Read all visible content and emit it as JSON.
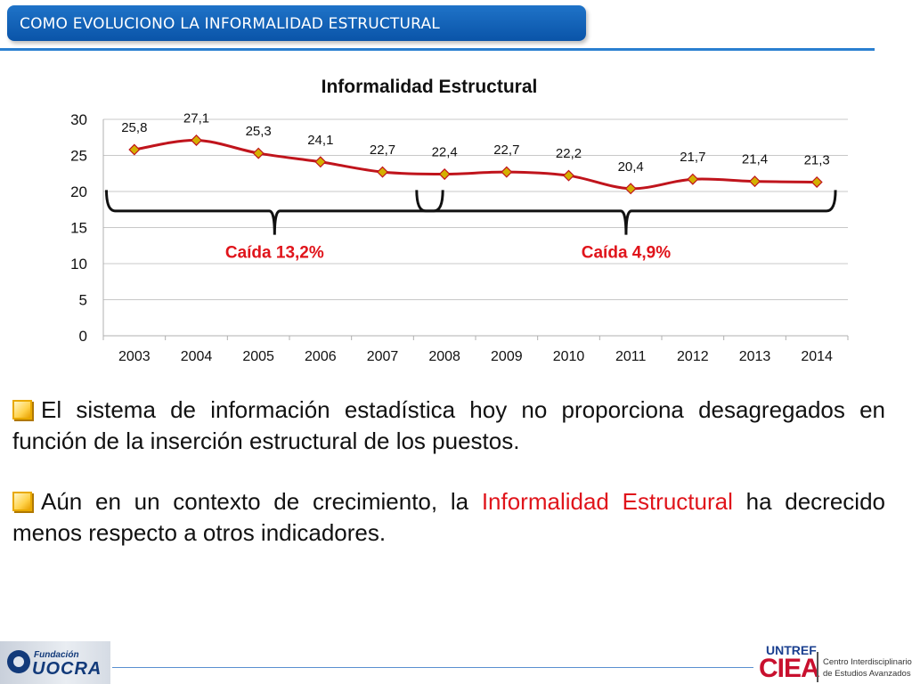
{
  "header": {
    "title": "COMO EVOLUCIONO LA INFORMALIDAD ESTRUCTURAL"
  },
  "chart_data": {
    "type": "line",
    "title": "Informalidad Estructural",
    "categories": [
      "2003",
      "2004",
      "2005",
      "2006",
      "2007",
      "2008",
      "2009",
      "2010",
      "2011",
      "2012",
      "2013",
      "2014"
    ],
    "series": [
      {
        "values": [
          25.8,
          27.1,
          25.3,
          24.1,
          22.7,
          22.4,
          22.7,
          22.2,
          20.4,
          21.7,
          21.4,
          21.3
        ]
      }
    ],
    "data_labels": [
      "25,8",
      "27,1",
      "25,3",
      "24,1",
      "22,7",
      "22,4",
      "22,7",
      "22,2",
      "20,4",
      "21,7",
      "21,4",
      "21,3"
    ],
    "y_ticks": [
      "0",
      "5",
      "10",
      "15",
      "20",
      "25",
      "30"
    ],
    "ylim": [
      0,
      30
    ],
    "grid": true,
    "line_color": "#c0141c",
    "marker_color": "#d4b000",
    "annotations": [
      {
        "text": "Caída 13,2%",
        "from_category": "2003",
        "to_category": "2008"
      },
      {
        "text": "Caída 4,9%",
        "from_category": "2008",
        "to_category": "2014"
      }
    ],
    "annotation_color": "#e0141b"
  },
  "bullets": {
    "b1": "El sistema de información estadística hoy no proporciona desagregados en función de la inserción estructural de los puestos.",
    "b2_pre": "Aún en un contexto de crecimiento, la ",
    "b2_highlight": "Informalidad Estructural",
    "b2_post": " ha decrecido menos respecto a otros indicadores."
  },
  "footer": {
    "uocra_small": "Fundación",
    "uocra_big": "UOCRA",
    "untref": "UNTREF",
    "ciea": "CIEA",
    "ciea_desc_line1": "Centro Interdisciplinario",
    "ciea_desc_line2": "de Estudios Avanzados"
  }
}
